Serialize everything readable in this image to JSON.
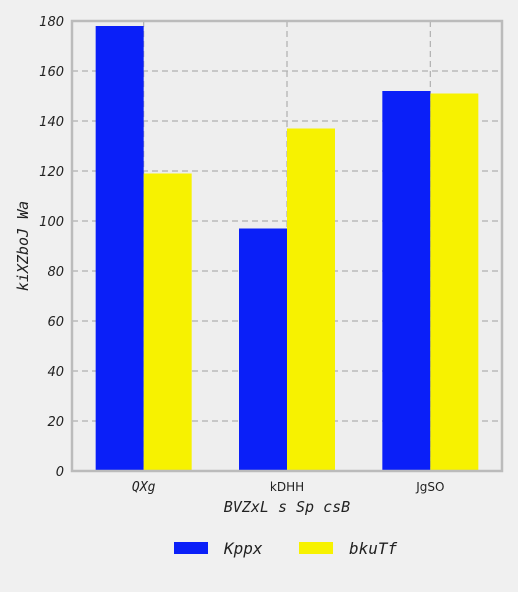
{
  "chart_data": {
    "type": "bar",
    "categories": [
      "QXg",
      "kDHH",
      "JgSO"
    ],
    "category_label_styles": [
      "italic-mono",
      "plain",
      "plain"
    ],
    "series": [
      {
        "name": "Kppx",
        "values": [
          178,
          97,
          152
        ],
        "color": "#0a1ff8"
      },
      {
        "name": "bkuTf",
        "values": [
          119,
          137,
          151
        ],
        "color": "#f7f200"
      }
    ],
    "title": "",
    "xlabel": "BVZxL s Sp csB",
    "ylabel": "kiXZboJ  Wa",
    "ylim": [
      0,
      180
    ],
    "yticks": [
      0,
      20,
      40,
      60,
      80,
      100,
      120,
      140,
      160,
      180
    ],
    "grid": true,
    "legend_position": "bottom-center"
  }
}
